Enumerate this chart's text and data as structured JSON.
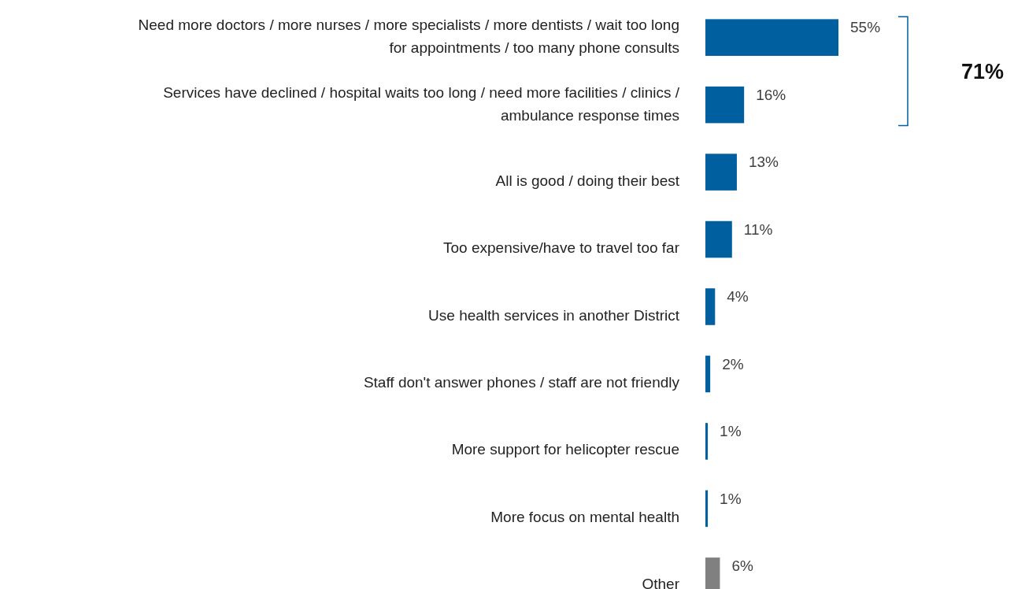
{
  "chart_data": {
    "type": "bar",
    "orientation": "horizontal",
    "value_labels": [
      "55%",
      "16%",
      "13%",
      "11%",
      "4%",
      "2%",
      "1%",
      "1%",
      "6%"
    ],
    "categories": [
      "Need more doctors / more nurses / more specialists / more dentists / wait too long for appointments / too many phone consults",
      "Services have declined / hospital waits too long / need more facilities / clinics / ambulance response times",
      "All is good / doing their best",
      "Too expensive/have to travel too far",
      "Use health services in another District",
      "Staff don't answer phones / staff are not friendly",
      "More support for helicopter rescue",
      "More focus on mental health",
      "Other"
    ],
    "values": [
      55,
      16,
      13,
      11,
      4,
      2,
      1,
      1,
      6
    ],
    "colors": [
      "#005f9e",
      "#005f9e",
      "#005f9e",
      "#005f9e",
      "#005f9e",
      "#005f9e",
      "#005f9e",
      "#005f9e",
      "#808080"
    ],
    "annotations": [
      "71%"
    ]
  }
}
